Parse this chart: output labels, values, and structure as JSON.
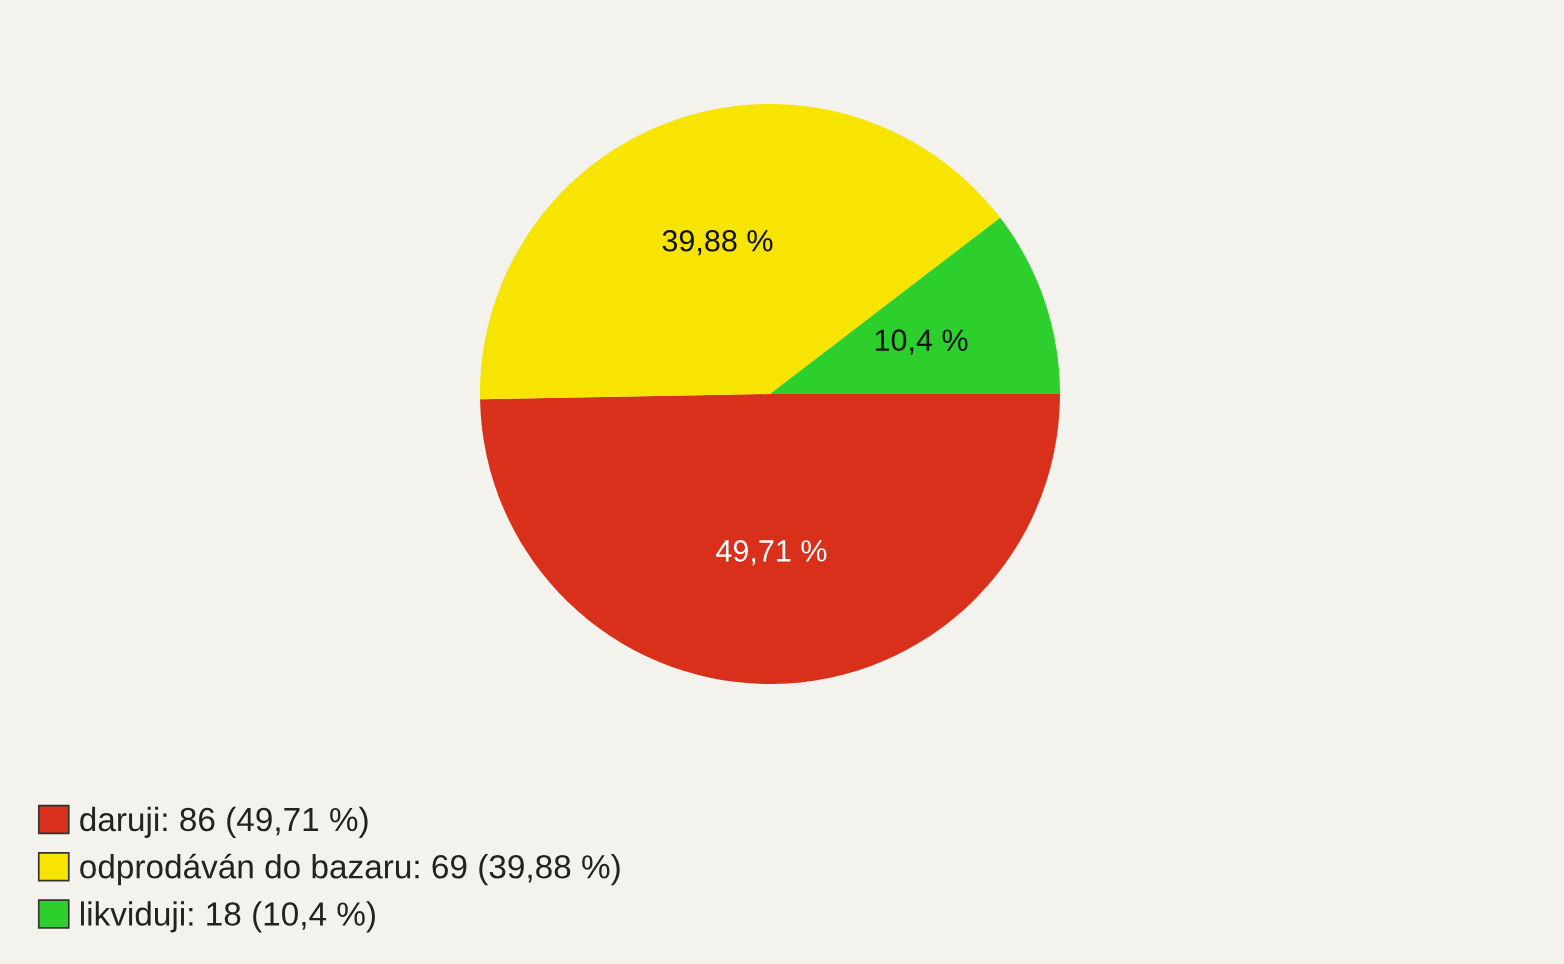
{
  "chart_data": {
    "type": "pie",
    "categories": [
      "daruji: 86 (49,71 %)",
      "odprodáván do bazaru: 69 (39,88 %)",
      "likviduji: 18 (10,4 %)"
    ],
    "values": [
      49.71,
      39.88,
      10.4
    ],
    "colors": [
      "#d8301a",
      "#f7e400",
      "#2ccf2c"
    ],
    "value_labels": [
      "49,71 %",
      "39,88 %",
      "10,4 %"
    ],
    "legend": "bottom left"
  }
}
